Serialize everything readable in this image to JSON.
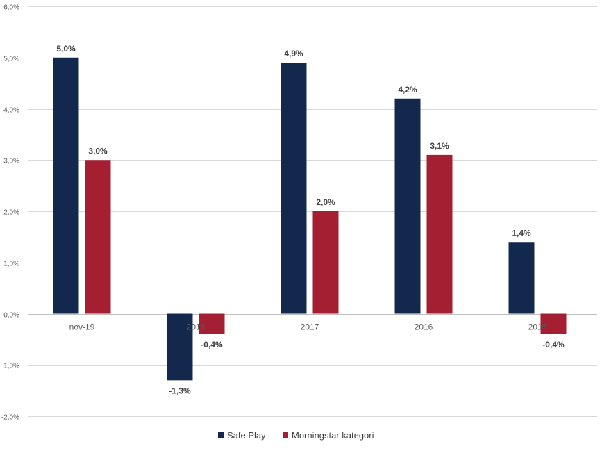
{
  "chart_data": {
    "type": "bar",
    "categories": [
      "nov-19",
      "2018",
      "2017",
      "2016",
      "2015"
    ],
    "series": [
      {
        "name": "Safe Play",
        "color": "#13284d",
        "values": [
          5.0,
          -1.3,
          4.9,
          4.2,
          1.4
        ],
        "labels": [
          "5,0%",
          "-1,3%",
          "4,9%",
          "4,2%",
          "1,4%"
        ]
      },
      {
        "name": "Morningstar kategori",
        "color": "#a51f32",
        "values": [
          3.0,
          -0.4,
          2.0,
          3.1,
          -0.4
        ],
        "labels": [
          "3,0%",
          "-0,4%",
          "2,0%",
          "3,1%",
          "-0,4%"
        ]
      }
    ],
    "ylim": [
      -2,
      6
    ],
    "yticks": [
      -2,
      -1,
      0,
      1,
      2,
      3,
      4,
      5,
      6
    ],
    "ytick_labels": [
      "-2,0%",
      "-1,0%",
      "0,0%",
      "1,0%",
      "2,0%",
      "3,0%",
      "4,0%",
      "5,0%",
      "6,0%"
    ],
    "grid": true,
    "legend_position": "bottom",
    "title": "",
    "xlabel": "",
    "ylabel": ""
  }
}
